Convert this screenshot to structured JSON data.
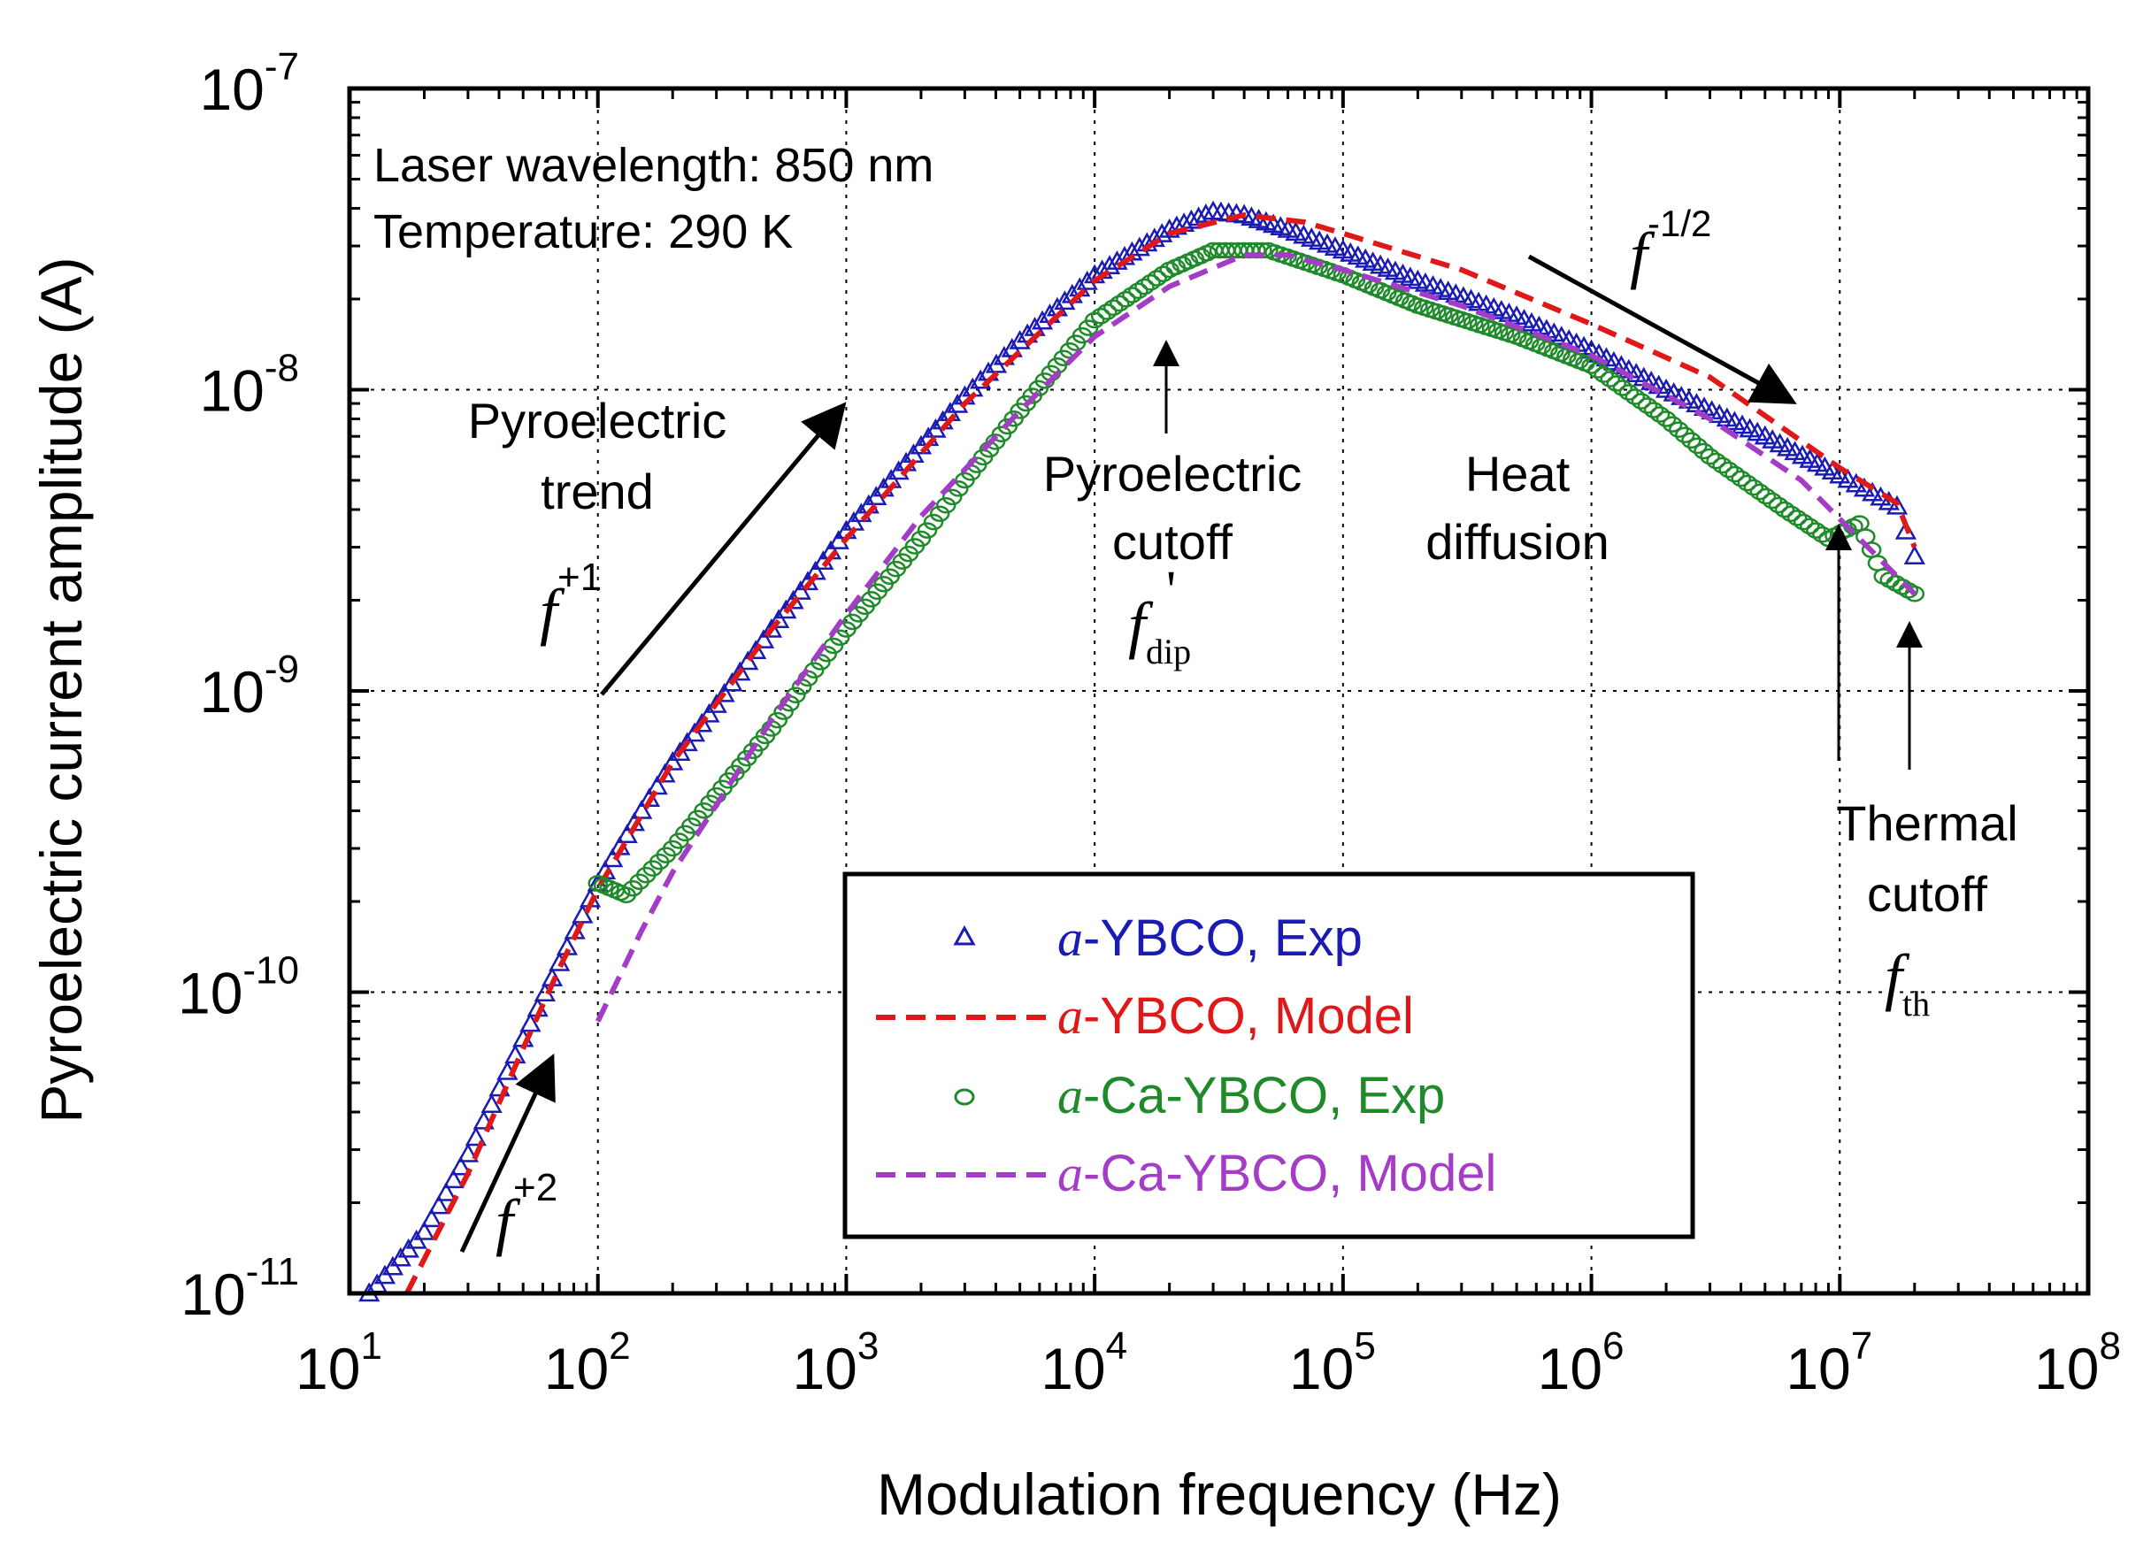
{
  "chart_data": {
    "type": "scatter",
    "x_scale": "log",
    "y_scale": "log",
    "xlabel": "Modulation frequency (Hz)",
    "ylabel": "Pyroelectric current amplitude (A)",
    "xlim": [
      10,
      100000000
    ],
    "ylim": [
      1e-11,
      1e-07
    ],
    "grid": true,
    "x_ticks": [
      {
        "value": 10,
        "base": "10",
        "exp": "1"
      },
      {
        "value": 100,
        "base": "10",
        "exp": "2"
      },
      {
        "value": 1000,
        "base": "10",
        "exp": "3"
      },
      {
        "value": 10000,
        "base": "10",
        "exp": "4"
      },
      {
        "value": 100000,
        "base": "10",
        "exp": "5"
      },
      {
        "value": 1000000,
        "base": "10",
        "exp": "6"
      },
      {
        "value": 10000000,
        "base": "10",
        "exp": "7"
      },
      {
        "value": 100000000,
        "base": "10",
        "exp": "8"
      }
    ],
    "y_ticks": [
      {
        "value": 1e-11,
        "base": "10",
        "exp": "-11"
      },
      {
        "value": 1e-10,
        "base": "10",
        "exp": "-10"
      },
      {
        "value": 1e-09,
        "base": "10",
        "exp": "-9"
      },
      {
        "value": 1e-08,
        "base": "10",
        "exp": "-8"
      },
      {
        "value": 1e-07,
        "base": "10",
        "exp": "-7"
      }
    ],
    "info_text": [
      "Laser wavelength: 850 nm",
      "Temperature: 290 K"
    ],
    "legend_position": "lower-right",
    "series": [
      {
        "name_prefix": "a",
        "name": "-YBCO, Exp",
        "style": "triangle-markers",
        "color": "#1a1ab4",
        "points": [
          [
            12,
            1e-11
          ],
          [
            20,
            1.6e-11
          ],
          [
            30,
            2.9e-11
          ],
          [
            50,
            7e-11
          ],
          [
            70,
            1.25e-10
          ],
          [
            100,
            2.3e-10
          ],
          [
            150,
            4e-10
          ],
          [
            200,
            5.8e-10
          ],
          [
            300,
            9e-10
          ],
          [
            500,
            1.6e-09
          ],
          [
            700,
            2.3e-09
          ],
          [
            1000,
            3.4e-09
          ],
          [
            2000,
            6.5e-09
          ],
          [
            3000,
            9.5e-09
          ],
          [
            5000,
            1.45e-08
          ],
          [
            10000,
            2.4e-08
          ],
          [
            20000,
            3.4e-08
          ],
          [
            30000,
            3.9e-08
          ],
          [
            40000,
            3.8e-08
          ],
          [
            60000,
            3.4e-08
          ],
          [
            100000,
            2.9e-08
          ],
          [
            200000,
            2.3e-08
          ],
          [
            500000,
            1.75e-08
          ],
          [
            1000000,
            1.35e-08
          ],
          [
            2000000,
            1e-08
          ],
          [
            5000000,
            7e-09
          ],
          [
            10000000,
            5.2e-09
          ],
          [
            17000000,
            4.1e-09
          ],
          [
            20000000,
            2.8e-09
          ]
        ]
      },
      {
        "name_prefix": "a",
        "name": "-YBCO, Model",
        "style": "dashed-line",
        "color": "#e01818",
        "points": [
          [
            17,
            1e-11
          ],
          [
            30,
            2.5e-11
          ],
          [
            50,
            6.5e-11
          ],
          [
            70,
            1.2e-10
          ],
          [
            100,
            2.2e-10
          ],
          [
            200,
            5.8e-10
          ],
          [
            500,
            1.6e-09
          ],
          [
            1000,
            3.2e-09
          ],
          [
            3000,
            9e-09
          ],
          [
            10000,
            2.3e-08
          ],
          [
            20000,
            3.3e-08
          ],
          [
            40000,
            3.8e-08
          ],
          [
            70000,
            3.6e-08
          ],
          [
            100000,
            3.3e-08
          ],
          [
            300000,
            2.5e-08
          ],
          [
            1000000,
            1.65e-08
          ],
          [
            3000000,
            1.1e-08
          ],
          [
            10000000,
            5.5e-09
          ],
          [
            17000000,
            4.2e-09
          ],
          [
            20000000,
            3e-09
          ]
        ]
      },
      {
        "name_prefix": "a",
        "name": "-Ca-YBCO, Exp",
        "style": "circle-markers",
        "color": "#1f8a2a",
        "points": [
          [
            100,
            2.3e-10
          ],
          [
            130,
            2.1e-10
          ],
          [
            200,
            3e-10
          ],
          [
            300,
            4.5e-10
          ],
          [
            500,
            7.5e-10
          ],
          [
            700,
            1.1e-09
          ],
          [
            1000,
            1.6e-09
          ],
          [
            2000,
            3.2e-09
          ],
          [
            3000,
            5e-09
          ],
          [
            5000,
            8.5e-09
          ],
          [
            10000,
            1.7e-08
          ],
          [
            20000,
            2.5e-08
          ],
          [
            30000,
            2.9e-08
          ],
          [
            50000,
            2.9e-08
          ],
          [
            100000,
            2.4e-08
          ],
          [
            200000,
            1.9e-08
          ],
          [
            500000,
            1.5e-08
          ],
          [
            1000000,
            1.2e-08
          ],
          [
            2000000,
            8e-09
          ],
          [
            3000000,
            6e-09
          ],
          [
            6000000,
            4e-09
          ],
          [
            9000000,
            3.2e-09
          ],
          [
            12000000,
            3.6e-09
          ],
          [
            15000000,
            2.4e-09
          ],
          [
            20000000,
            2.1e-09
          ]
        ]
      },
      {
        "name_prefix": "a",
        "name": "-Ca-YBCO, Model",
        "style": "dashed-line",
        "color": "#a43cc8",
        "points": [
          [
            100,
            8e-11
          ],
          [
            150,
            1.6e-10
          ],
          [
            200,
            2.5e-10
          ],
          [
            500,
            8e-10
          ],
          [
            1000,
            1.8e-09
          ],
          [
            2000,
            3.8e-09
          ],
          [
            5000,
            8.5e-09
          ],
          [
            10000,
            1.5e-08
          ],
          [
            20000,
            2.2e-08
          ],
          [
            40000,
            2.8e-08
          ],
          [
            60000,
            2.8e-08
          ],
          [
            100000,
            2.5e-08
          ],
          [
            300000,
            1.9e-08
          ],
          [
            1000000,
            1.3e-08
          ],
          [
            3000000,
            8e-09
          ],
          [
            7000000,
            5e-09
          ],
          [
            12000000,
            3.2e-09
          ],
          [
            20000000,
            2.1e-09
          ]
        ]
      }
    ],
    "annotations": [
      {
        "id": "pyro-trend",
        "lines": [
          "Pyroelectric",
          "trend"
        ]
      },
      {
        "id": "pyro-cutoff",
        "lines": [
          "Pyroelectric",
          "cutoff"
        ]
      },
      {
        "id": "heat-diffusion",
        "lines": [
          "Heat",
          "diffusion"
        ]
      },
      {
        "id": "thermal-cutoff",
        "lines": [
          "Thermal",
          "cutoff"
        ]
      }
    ],
    "math_labels": {
      "f_symbol": "f",
      "f_plus1_exp": "+1",
      "f_plus2_exp": "+2",
      "f_minus_half_exp": "-1/2",
      "f_dip_sub": "dip",
      "f_dip_prime": "'",
      "f_th_sub": "th"
    }
  }
}
